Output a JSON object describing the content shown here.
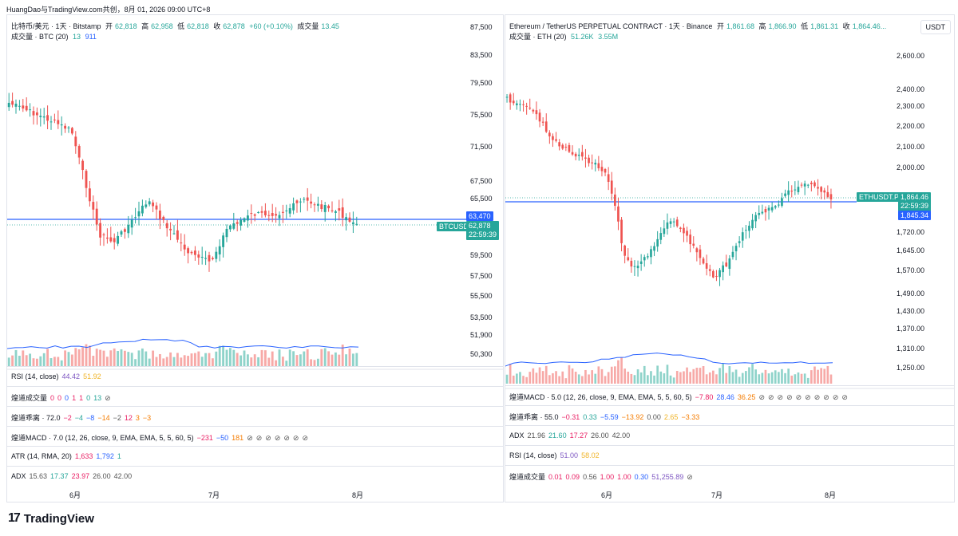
{
  "topline": "HuangDao与TradingView.com共创，8月 01, 2026 09:00 UTC+8",
  "colors": {
    "up": "#26a69a",
    "down": "#ef5350",
    "vol_up": "#8fd3ca",
    "vol_down": "#f7a9a7",
    "blue": "#2962ff",
    "purple": "#7e57c2"
  },
  "logo_text": "TradingView",
  "left": {
    "title": "比特币/美元 · 1天 · Bitstamp",
    "ohlc": {
      "o_label": "开",
      "o": "62,818",
      "h_label": "高",
      "h": "62,958",
      "l_label": "低",
      "l": "62,818",
      "c_label": "收",
      "c": "62,878",
      "chg": "+60 (+0.10%)",
      "v_label": "成交量",
      "v": "13.45"
    },
    "volume_legend": {
      "label": "成交量 · BTC (20)",
      "v1": "13",
      "v2": "911"
    },
    "price_axis": [
      "87,500",
      "83,500",
      "79,500",
      "75,500",
      "71,500",
      "67,500",
      "65,500",
      "63,470",
      "62,878",
      "59,500",
      "57,500",
      "55,500",
      "53,500",
      "51,900",
      "50,300"
    ],
    "tags": {
      "symbol": "BTCUSD",
      "blue_price": "63,470",
      "last": "62,878",
      "countdown": "22:59:39"
    },
    "months": [
      "6月",
      "7月",
      "8月"
    ],
    "indicators": [
      {
        "name": "RSI (14, close)",
        "vals": [
          "44.42",
          "51.92"
        ]
      },
      {
        "name": "煌道成交量",
        "vals": [
          "0",
          "0",
          "0",
          "1",
          "1",
          "0",
          "13",
          "⊘"
        ]
      },
      {
        "name": "煌道乖离 · 72.0",
        "vals": [
          "−2",
          "−4",
          "−8",
          "−14",
          "−2",
          "12",
          "3",
          "−3"
        ]
      },
      {
        "name": "煌道MACD · 7.0 (12, 26, close, 9, EMA, EMA, 5, 5, 60, 5)",
        "vals": [
          "−231",
          "−50",
          "181",
          "⊘",
          "⊘",
          "⊘",
          "⊘",
          "⊘",
          "⊘",
          "⊘"
        ]
      },
      {
        "name": "ATR (14, RMA, 20)",
        "vals": [
          "1,633",
          "1,792",
          "1"
        ]
      },
      {
        "name": "ADX",
        "vals": [
          "15.63",
          "17.37",
          "23.97",
          "26.00",
          "42.00"
        ]
      }
    ]
  },
  "right": {
    "title": "Ethereum / TetherUS PERPETUAL CONTRACT · 1天 · Binance",
    "ohlc": {
      "o_label": "开",
      "o": "1,861.68",
      "h_label": "高",
      "h": "1,866.90",
      "l_label": "低",
      "l": "1,861.31",
      "c_label": "收",
      "c": "1,864.46..."
    },
    "volume_legend": {
      "label": "成交量 · ETH (20)",
      "v1": "51.26K",
      "v2": "3.55M"
    },
    "unit": "USDT",
    "price_axis": [
      "2,600.00",
      "2,400.00",
      "2,300.00",
      "2,200.00",
      "2,100.00",
      "2,000.00",
      "1,720.00",
      "1,645.00",
      "1,570.00",
      "1,490.00",
      "1,430.00",
      "1,370.00",
      "1,310.00",
      "1,250.00"
    ],
    "tags": {
      "symbol": "ETHUSDT.P",
      "last": "1,864.46",
      "countdown": "22:59:39",
      "blue_price": "1,845.34"
    },
    "months": [
      "6月",
      "7月",
      "8月"
    ],
    "indicators": [
      {
        "name": "煌道MACD · 5.0 (12, 26, close, 9, EMA, EMA, 5, 5, 60, 5)",
        "vals": [
          "−7.80",
          "28.46",
          "36.25",
          "⊘",
          "⊘",
          "⊘",
          "⊘",
          "⊘",
          "⊘",
          "⊘",
          "⊘",
          "⊘",
          "⊘"
        ]
      },
      {
        "name": "煌道乖离 · 55.0",
        "vals": [
          "−0.31",
          "0.33",
          "−5.59",
          "−13.92",
          "0.00",
          "2.65",
          "−3.33"
        ]
      },
      {
        "name": "ADX",
        "vals": [
          "21.96",
          "21.60",
          "17.27",
          "26.00",
          "42.00"
        ]
      },
      {
        "name": "RSI (14, close)",
        "vals": [
          "51.00",
          "58.02"
        ]
      },
      {
        "name": "煌道成交量",
        "vals": [
          "0.01",
          "0.09",
          "0.56",
          "1.00",
          "1.00",
          "0.30",
          "51,255.89",
          "⊘"
        ]
      }
    ]
  }
}
